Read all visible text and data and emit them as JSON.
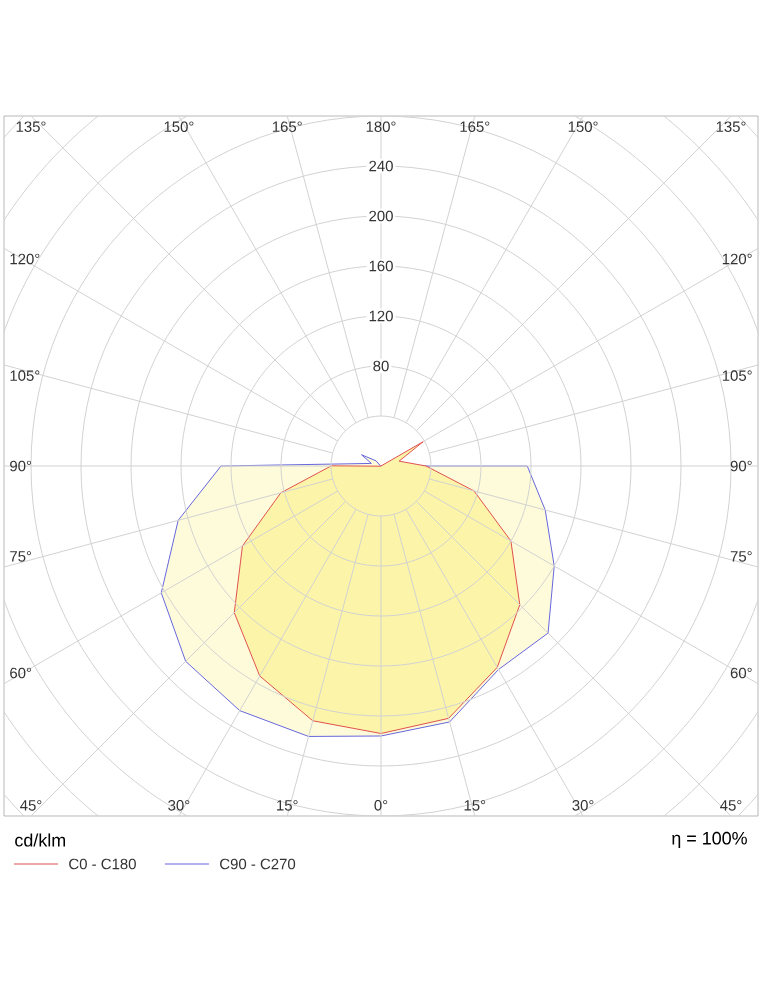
{
  "chart_data": {
    "type": "radar",
    "categories": [
      "180°",
      "165°",
      "150°",
      "135°",
      "120°",
      "105°",
      "90°",
      "75°",
      "60°",
      "45°",
      "30°",
      "15°",
      "0°",
      "15°",
      "30°",
      "45°",
      "60°",
      "75°",
      "90°",
      "105°",
      "120°",
      "135°",
      "150°",
      "165°"
    ],
    "series": [
      {
        "name": "C0 - C180",
        "color": "#e05050",
        "values": [
          0,
          0,
          0,
          0,
          39,
          15,
          36,
          77,
          120,
          157,
          186,
          209,
          214,
          211,
          194,
          166,
          128,
          83,
          40,
          0,
          0,
          0,
          0,
          0
        ]
      },
      {
        "name": "C90 - C270",
        "color": "#6666dd",
        "values": [
          0,
          0,
          0,
          0,
          0,
          0,
          117,
          136,
          160,
          189,
          188,
          212,
          216,
          224,
          226,
          221,
          203,
          168,
          128,
          8,
          18,
          6,
          0,
          0
        ]
      }
    ],
    "ylim": [
      0,
      400
    ],
    "yticks": [
      80,
      120,
      160,
      200,
      240
    ],
    "grid": true,
    "legend": "bottom",
    "annotations": [
      "cd/klm",
      "η = 100%"
    ]
  }
}
